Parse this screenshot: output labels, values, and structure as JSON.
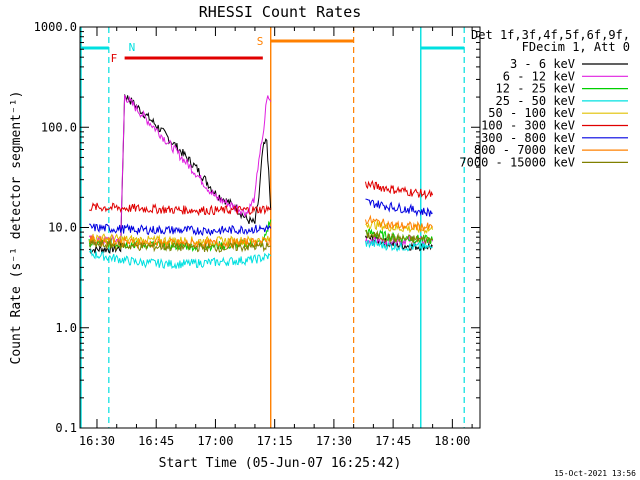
{
  "chart_data": {
    "type": "line",
    "title": "RHESSI Count Rates",
    "xlabel": "Start Time (05-Jun-07 16:25:42)",
    "ylabel": "Count Rate (s⁻¹ detector segment⁻¹)",
    "y_scale": "log",
    "ylim": [
      0.1,
      1000.0
    ],
    "y_ticks": [
      "0.1",
      "1.0",
      "10.0",
      "100.0",
      "1000.0"
    ],
    "x_ticks": [
      {
        "t": "16:30",
        "label": "16:30"
      },
      {
        "t": "16:45",
        "label": "16:45"
      },
      {
        "t": "17:00",
        "label": "17:00"
      },
      {
        "t": "17:15",
        "label": "17:15"
      },
      {
        "t": "17:30",
        "label": "17:30"
      },
      {
        "t": "17:45",
        "label": "17:45"
      },
      {
        "t": "18:00",
        "label": "18:00"
      }
    ],
    "xlim": [
      "16:25:42",
      "18:07:00"
    ],
    "legend": {
      "placement": "right",
      "header": [
        "Det 1f,3f,4f,5f,6f,9f,",
        "FDecim 1, Att 0"
      ],
      "entries": [
        {
          "name": "3 - 6 keV",
          "color": "#000000"
        },
        {
          "name": "6 - 12 keV",
          "color": "#e020e0"
        },
        {
          "name": "12 - 25 keV",
          "color": "#00d000"
        },
        {
          "name": "25 - 50 keV",
          "color": "#00e0e0"
        },
        {
          "name": "50 - 100 keV",
          "color": "#e0c000"
        },
        {
          "name": "100 - 300 keV",
          "color": "#e00000"
        },
        {
          "name": "300 - 800 keV",
          "color": "#0000e0"
        },
        {
          "name": "800 - 7000 keV",
          "color": "#ff8000"
        },
        {
          "name": "7000 - 15000 keV",
          "color": "#808000"
        }
      ]
    },
    "flags": [
      {
        "label": "N",
        "color": "#00e0e0",
        "label_at": "16:37"
      },
      {
        "label": "F",
        "color": "#e00000",
        "start": "16:37",
        "end": "17:12"
      },
      {
        "label": "S",
        "color": "#ff8000",
        "label_at": "17:14"
      }
    ],
    "series": [
      {
        "name": "3 - 6 keV",
        "color": "#000000",
        "segments": [
          {
            "points": [
              [
                "16:28",
                6.0
              ],
              [
                "16:36",
                6.2
              ],
              [
                "16:37",
                210
              ],
              [
                "16:45",
                105
              ],
              [
                "16:55",
                40
              ],
              [
                "17:00",
                22
              ],
              [
                "17:05",
                16
              ],
              [
                "17:08",
                12
              ],
              [
                "17:10",
                11
              ],
              [
                "17:11",
                20
              ],
              [
                "17:12",
                60
              ],
              [
                "17:13",
                75
              ],
              [
                "17:14",
                15
              ]
            ]
          },
          {
            "points": [
              [
                "17:38",
                8.0
              ],
              [
                "17:45",
                6.8
              ],
              [
                "17:50",
                6.5
              ],
              [
                "17:55",
                6.5
              ]
            ]
          }
        ]
      },
      {
        "name": "6 - 12 keV",
        "color": "#e020e0",
        "segments": [
          {
            "points": [
              [
                "16:28",
                7.5
              ],
              [
                "16:36",
                7.5
              ],
              [
                "16:37",
                205
              ],
              [
                "16:45",
                95
              ],
              [
                "16:55",
                35
              ],
              [
                "17:00",
                20
              ],
              [
                "17:05",
                16
              ],
              [
                "17:08",
                14
              ],
              [
                "17:10",
                20
              ],
              [
                "17:11",
                50
              ],
              [
                "17:12",
                75
              ],
              [
                "17:13",
                200
              ],
              [
                "17:14",
                180
              ]
            ]
          },
          {
            "points": [
              [
                "17:38",
                7.5
              ],
              [
                "17:45",
                7.5
              ],
              [
                "17:55",
                7.3
              ]
            ]
          }
        ]
      },
      {
        "name": "12 - 25 keV",
        "color": "#00d000",
        "segments": [
          {
            "points": [
              [
                "16:28",
                7.0
              ],
              [
                "16:40",
                6.8
              ],
              [
                "16:55",
                6.5
              ],
              [
                "17:05",
                6.7
              ],
              [
                "17:12",
                7.0
              ],
              [
                "17:14",
                12.0
              ]
            ]
          },
          {
            "points": [
              [
                "17:38",
                9.0
              ],
              [
                "17:45",
                8.0
              ],
              [
                "17:55",
                7.5
              ]
            ]
          }
        ]
      },
      {
        "name": "25 - 50 keV",
        "color": "#00e0e0",
        "segments": [
          {
            "points": [
              [
                "16:28",
                5.5
              ],
              [
                "16:40",
                4.5
              ],
              [
                "16:50",
                4.3
              ],
              [
                "17:00",
                4.5
              ],
              [
                "17:10",
                4.8
              ],
              [
                "17:14",
                5.2
              ]
            ]
          },
          {
            "points": [
              [
                "17:38",
                7.0
              ],
              [
                "17:45",
                6.5
              ],
              [
                "17:55",
                6.3
              ]
            ]
          }
        ]
      },
      {
        "name": "50 - 100 keV",
        "color": "#e0c000",
        "segments": [
          {
            "points": [
              [
                "16:28",
                8.0
              ],
              [
                "16:40",
                7.5
              ],
              [
                "17:00",
                7.3
              ],
              [
                "17:14",
                7.5
              ]
            ]
          },
          {
            "points": [
              [
                "17:38",
                11.0
              ],
              [
                "17:45",
                10.0
              ],
              [
                "17:55",
                9.5
              ]
            ]
          }
        ]
      },
      {
        "name": "100 - 300 keV",
        "color": "#e00000",
        "segments": [
          {
            "points": [
              [
                "16:28",
                16.0
              ],
              [
                "16:40",
                15.5
              ],
              [
                "16:50",
                15.0
              ],
              [
                "17:00",
                14.8
              ],
              [
                "17:10",
                15.0
              ],
              [
                "17:14",
                15.5
              ]
            ]
          },
          {
            "points": [
              [
                "17:38",
                27.0
              ],
              [
                "17:45",
                24.0
              ],
              [
                "17:55",
                21.0
              ]
            ]
          }
        ]
      },
      {
        "name": "300 - 800 keV",
        "color": "#0000e0",
        "segments": [
          {
            "points": [
              [
                "16:28",
                10.0
              ],
              [
                "16:40",
                9.5
              ],
              [
                "17:00",
                9.3
              ],
              [
                "17:14",
                9.8
              ]
            ]
          },
          {
            "points": [
              [
                "17:38",
                18.0
              ],
              [
                "17:45",
                16.0
              ],
              [
                "17:55",
                14.0
              ]
            ]
          }
        ]
      },
      {
        "name": "800 - 7000 keV",
        "color": "#ff8000",
        "segments": [
          {
            "points": [
              [
                "16:28",
                7.5
              ],
              [
                "16:40",
                7.0
              ],
              [
                "17:00",
                6.9
              ],
              [
                "17:14",
                7.2
              ]
            ]
          },
          {
            "points": [
              [
                "17:38",
                12.0
              ],
              [
                "17:45",
                10.5
              ],
              [
                "17:55",
                10.0
              ]
            ]
          }
        ]
      },
      {
        "name": "7000 - 15000 keV",
        "color": "#808000",
        "segments": [
          {
            "points": [
              [
                "16:28",
                6.8
              ],
              [
                "16:40",
                6.5
              ],
              [
                "17:00",
                6.3
              ],
              [
                "17:14",
                6.5
              ]
            ]
          },
          {
            "points": [
              [
                "17:38",
                8.5
              ],
              [
                "17:45",
                7.8
              ],
              [
                "17:55",
                7.5
              ]
            ]
          }
        ]
      }
    ],
    "annotations": [
      {
        "text": "15-Oct-2021 13:56",
        "placement": "bottom-right"
      }
    ]
  }
}
